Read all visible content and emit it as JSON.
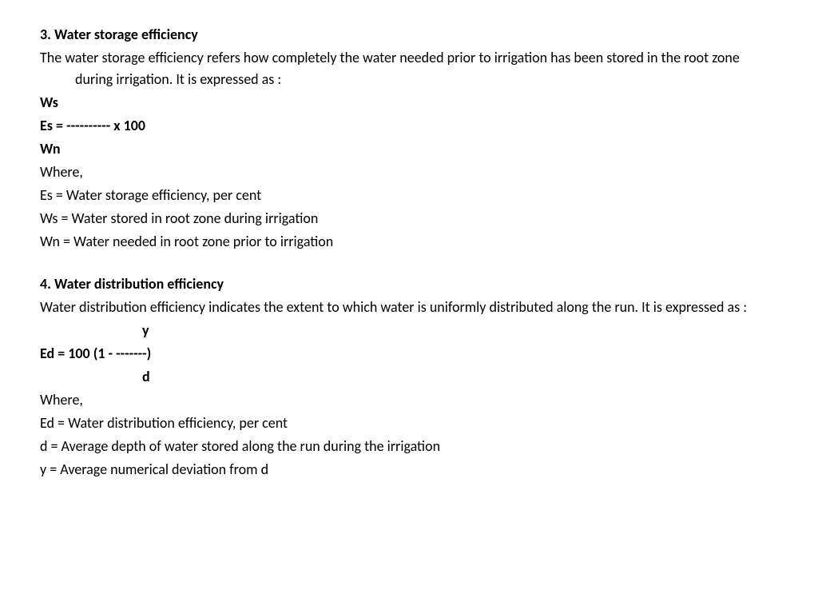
{
  "section3": {
    "title": "3. Water  storage efficiency",
    "description": "The water storage efficiency refers how completely the water needed prior to irrigation has been stored in the root zone during irrigation. It is expressed as :",
    "formula_line1": "Ws",
    "formula_line2": "Es = ---------- x 100",
    "formula_line3": "Wn",
    "where_label": "Where,",
    "def_es": "Es = Water storage efficiency, per cent",
    "def_ws": "Ws = Water stored in root zone during irrigation",
    "def_wn": "Wn = Water needed in root zone prior to irrigation"
  },
  "section4": {
    "title": "4. Water  distribution efficiency",
    "description": "Water distribution efficiency indicates the extent to which water is uniformly distributed along the run. It is expressed as :",
    "formula_line1": "y",
    "formula_line2": "Ed = 100  (1 - -------)",
    "formula_line3": "d",
    "where_label": "Where,",
    "def_ed": "Ed = Water distribution efficiency, per cent",
    "def_d": "d = Average depth of water stored along the run during the irrigation",
    "def_y": "y = Average numerical deviation from d"
  },
  "colors": {
    "background": "#ffffff",
    "text": "#000000"
  },
  "typography": {
    "font_family": "Calibri",
    "body_fontsize": 18,
    "line_height": 1.5
  }
}
